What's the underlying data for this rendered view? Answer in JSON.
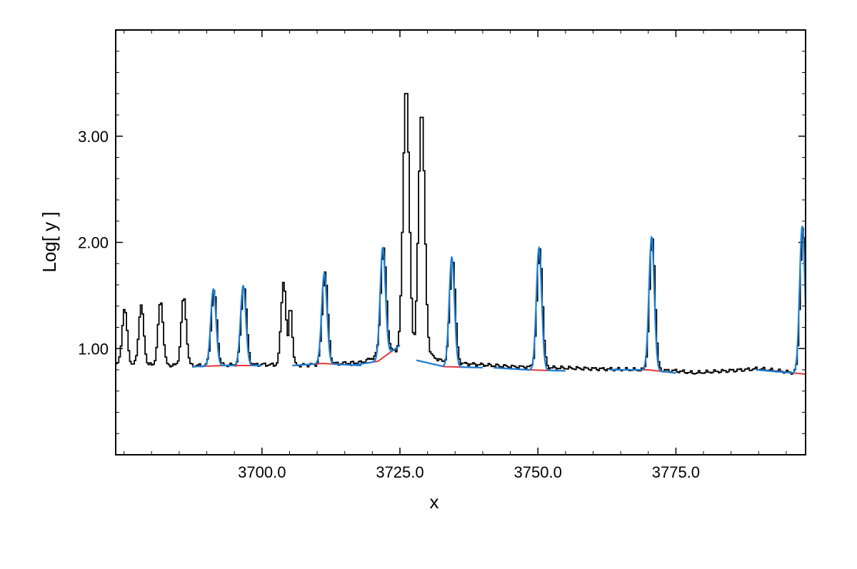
{
  "chart_data": {
    "type": "line",
    "xlabel": "x",
    "ylabel": "Log[ y ]",
    "xlim": [
      3673.5,
      3798.5
    ],
    "ylim": [
      0.0,
      4.0
    ],
    "x_ticks": [
      3700,
      3725,
      3750,
      3775
    ],
    "x_tick_labels": [
      "3700.0",
      "3725.0",
      "3750.0",
      "3775.0"
    ],
    "y_ticks": [
      1.0,
      2.0,
      3.0
    ],
    "y_tick_labels": [
      "1.00",
      "2.00",
      "3.00"
    ],
    "grid": false,
    "colors": {
      "observed": "#000000",
      "fit": "#1a7fd6",
      "continuum": "#e8363a"
    },
    "observed": {
      "baseline": [
        [
          3673.5,
          0.85
        ],
        [
          3688,
          0.84
        ],
        [
          3700,
          0.85
        ],
        [
          3705.5,
          0.84
        ],
        [
          3718,
          0.87
        ],
        [
          3723,
          0.98
        ],
        [
          3729,
          0.97
        ],
        [
          3733,
          0.87
        ],
        [
          3745,
          0.83
        ],
        [
          3760,
          0.81
        ],
        [
          3775,
          0.79
        ],
        [
          3778,
          0.77
        ],
        [
          3790,
          0.81
        ],
        [
          3795,
          0.78
        ],
        [
          3798.5,
          0.76
        ]
      ],
      "peaks": [
        {
          "x": 3675.0,
          "height": 1.38,
          "width": 0.45
        },
        {
          "x": 3678.0,
          "height": 1.41,
          "width": 0.45
        },
        {
          "x": 3681.5,
          "height": 1.45,
          "width": 0.45
        },
        {
          "x": 3685.7,
          "height": 1.49,
          "width": 0.45
        },
        {
          "x": 3691.2,
          "height": 1.55,
          "width": 0.5
        },
        {
          "x": 3696.6,
          "height": 1.59,
          "width": 0.5
        },
        {
          "x": 3703.8,
          "height": 1.63,
          "width": 0.45
        },
        {
          "x": 3705.0,
          "height": 1.4,
          "width": 0.35
        },
        {
          "x": 3711.3,
          "height": 1.72,
          "width": 0.5
        },
        {
          "x": 3721.9,
          "height": 1.95,
          "width": 0.5
        },
        {
          "x": 3726.0,
          "height": 3.48,
          "width": 0.55
        },
        {
          "x": 3728.8,
          "height": 3.25,
          "width": 0.55
        },
        {
          "x": 3734.4,
          "height": 1.85,
          "width": 0.5
        },
        {
          "x": 3750.2,
          "height": 1.94,
          "width": 0.5
        },
        {
          "x": 3770.6,
          "height": 2.04,
          "width": 0.5
        },
        {
          "x": 3797.9,
          "height": 2.15,
          "width": 0.5
        }
      ]
    },
    "fits": [
      {
        "x_range": [
          3687.5,
          3700.0
        ],
        "continuum": [
          [
            3687.5,
            0.83
          ],
          [
            3693,
            0.84
          ],
          [
            3700,
            0.84
          ]
        ],
        "lines": [
          {
            "x": 3691.2,
            "peak": 1.56
          },
          {
            "x": 3696.6,
            "peak": 1.59
          }
        ]
      },
      {
        "x_range": [
          3705.5,
          3718.0
        ],
        "continuum": [
          [
            3705.5,
            0.84
          ],
          [
            3711,
            0.86
          ],
          [
            3718,
            0.84
          ]
        ],
        "lines": [
          {
            "x": 3711.3,
            "peak": 1.71
          }
        ]
      },
      {
        "x_range": [
          3716.0,
          3725.0
        ],
        "continuum": [
          [
            3716,
            0.84
          ],
          [
            3721,
            0.88
          ],
          [
            3725,
            1.03
          ]
        ],
        "lines": [
          {
            "x": 3721.9,
            "peak": 1.95
          }
        ]
      },
      {
        "x_range": [
          3728.0,
          3740.0
        ],
        "continuum": [
          [
            3728,
            0.89
          ],
          [
            3733,
            0.83
          ],
          [
            3740,
            0.82
          ]
        ],
        "lines": [
          {
            "x": 3734.4,
            "peak": 1.86
          }
        ]
      },
      {
        "x_range": [
          3742.0,
          3755.0
        ],
        "continuum": [
          [
            3742,
            0.82
          ],
          [
            3748,
            0.8
          ],
          [
            3755,
            0.79
          ]
        ],
        "lines": [
          {
            "x": 3750.2,
            "peak": 1.95
          }
        ]
      },
      {
        "x_range": [
          3763.0,
          3775.0
        ],
        "continuum": [
          [
            3763,
            0.8
          ],
          [
            3770,
            0.8
          ],
          [
            3775,
            0.77
          ]
        ],
        "lines": [
          {
            "x": 3770.6,
            "peak": 2.05
          }
        ]
      },
      {
        "x_range": [
          3789.5,
          3798.5
        ],
        "continuum": [
          [
            3789.5,
            0.8
          ],
          [
            3794,
            0.78
          ],
          [
            3798.5,
            0.76
          ]
        ],
        "lines": [
          {
            "x": 3797.9,
            "peak": 2.15
          }
        ]
      }
    ]
  }
}
